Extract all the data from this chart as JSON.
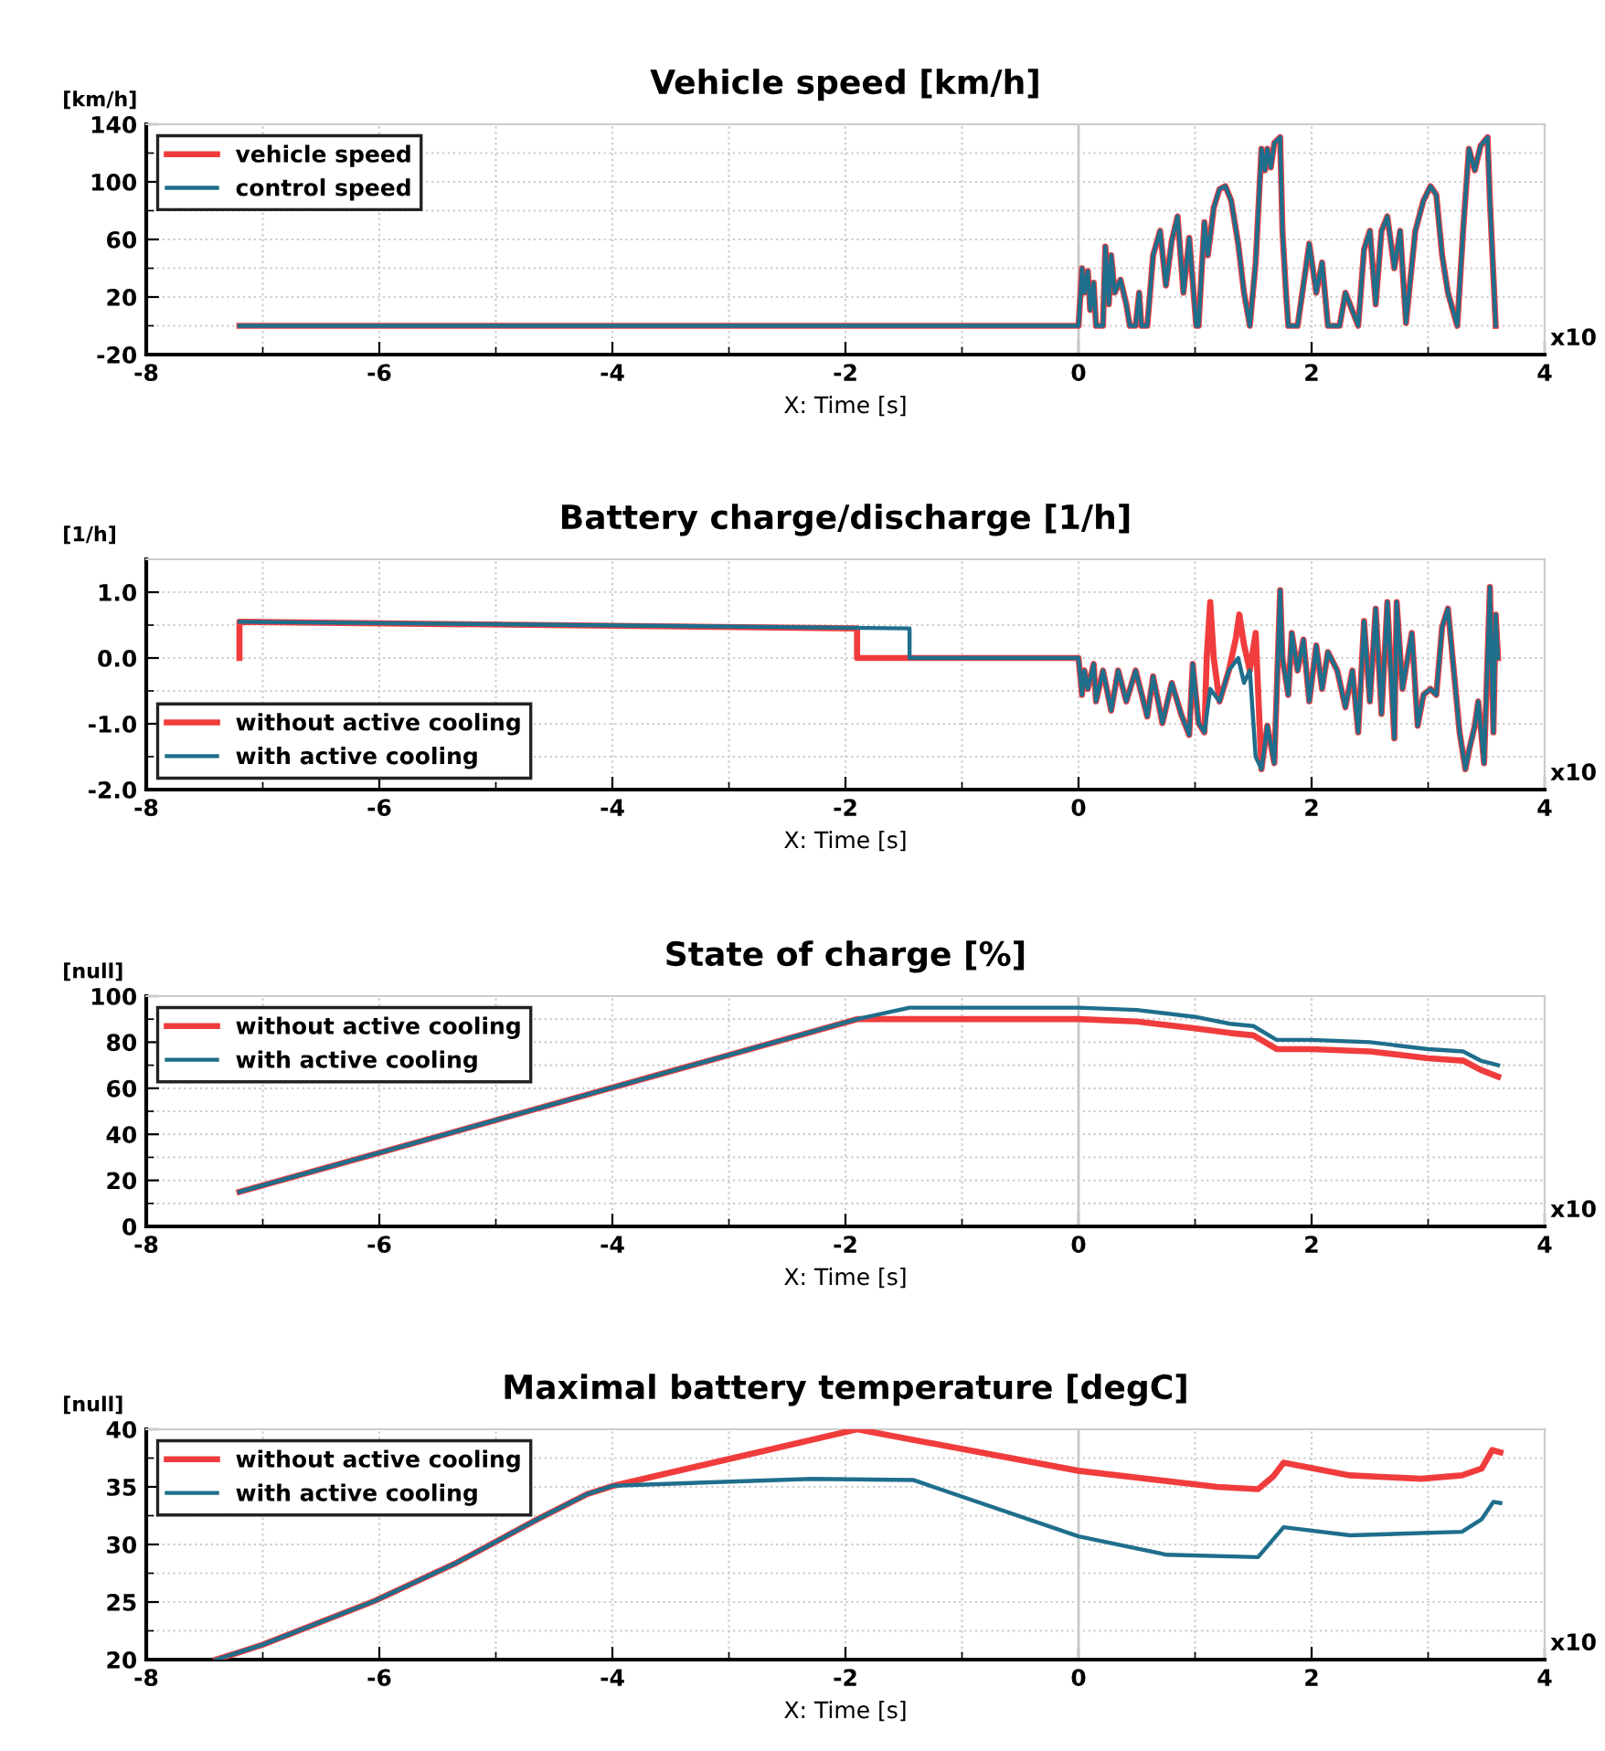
{
  "chart_data": [
    {
      "type": "line",
      "title": "Vehicle speed [km/h]",
      "ylabel": "[km/h]",
      "xlabel": "X: Time [s]",
      "annotations": [
        "x10"
      ],
      "legend": "top left",
      "grid": true,
      "xlim": [
        -8,
        4
      ],
      "xticks": [
        -8,
        -6,
        -4,
        -2,
        0,
        2,
        4
      ],
      "ylim": [
        -20,
        140
      ],
      "yticks": [
        -20,
        20,
        60,
        100,
        140
      ],
      "ref_lines": [
        {
          "axis": "x",
          "value": 0,
          "color": "#c8c8c8"
        }
      ],
      "series": [
        {
          "name": "vehicle speed",
          "color": "#f03c3c",
          "x": [
            -7.2,
            0.0,
            0.03,
            0.05,
            0.08,
            0.1,
            0.13,
            0.15,
            0.21,
            0.23,
            0.26,
            0.28,
            0.31,
            0.36,
            0.41,
            0.44,
            0.49,
            0.52,
            0.54,
            0.59,
            0.64,
            0.7,
            0.75,
            0.8,
            0.85,
            0.9,
            0.95,
            1.01,
            1.03,
            1.08,
            1.11,
            1.16,
            1.21,
            1.26,
            1.31,
            1.37,
            1.42,
            1.47,
            1.52,
            1.57,
            1.6,
            1.62,
            1.65,
            1.68,
            1.73,
            1.75,
            1.78,
            1.8,
            1.88,
            1.98,
            2.04,
            2.09,
            2.14,
            2.24,
            2.29,
            2.4,
            2.45,
            2.5,
            2.55,
            2.6,
            2.65,
            2.71,
            2.76,
            2.81,
            2.89,
            2.96,
            3.02,
            3.07,
            3.12,
            3.17,
            3.25,
            3.3,
            3.35,
            3.4,
            3.45,
            3.51,
            3.53,
            3.58
          ],
          "values": [
            0,
            0,
            40,
            23,
            38,
            11,
            30,
            0,
            0,
            55,
            15,
            49,
            23,
            32,
            15,
            0,
            0,
            23,
            0,
            0,
            49,
            66,
            28,
            59,
            76,
            23,
            61,
            0,
            0,
            72,
            49,
            82,
            95,
            97,
            87,
            57,
            23,
            0,
            44,
            123,
            108,
            123,
            110,
            127,
            131,
            66,
            23,
            0,
            0,
            57,
            23,
            44,
            0,
            0,
            23,
            0,
            53,
            66,
            15,
            66,
            76,
            40,
            66,
            2,
            66,
            87,
            97,
            91,
            49,
            23,
            0,
            66,
            123,
            108,
            125,
            131,
            87,
            0
          ]
        },
        {
          "name": "control speed",
          "color": "#1f6e8c",
          "x": [
            -7.2,
            0.0,
            0.03,
            0.05,
            0.08,
            0.1,
            0.13,
            0.15,
            0.21,
            0.23,
            0.26,
            0.28,
            0.31,
            0.36,
            0.41,
            0.44,
            0.49,
            0.52,
            0.54,
            0.59,
            0.64,
            0.7,
            0.75,
            0.8,
            0.85,
            0.9,
            0.95,
            1.01,
            1.03,
            1.08,
            1.11,
            1.16,
            1.21,
            1.26,
            1.31,
            1.37,
            1.42,
            1.47,
            1.52,
            1.57,
            1.6,
            1.62,
            1.65,
            1.68,
            1.73,
            1.75,
            1.78,
            1.8,
            1.88,
            1.98,
            2.04,
            2.09,
            2.14,
            2.24,
            2.29,
            2.4,
            2.45,
            2.5,
            2.55,
            2.6,
            2.65,
            2.71,
            2.76,
            2.81,
            2.89,
            2.96,
            3.02,
            3.07,
            3.12,
            3.17,
            3.25,
            3.3,
            3.35,
            3.4,
            3.45,
            3.51,
            3.53,
            3.58
          ],
          "values": [
            0,
            0,
            40,
            23,
            38,
            11,
            30,
            0,
            0,
            55,
            15,
            49,
            23,
            32,
            15,
            0,
            0,
            23,
            0,
            0,
            49,
            66,
            28,
            59,
            76,
            23,
            61,
            0,
            0,
            72,
            49,
            82,
            95,
            97,
            87,
            57,
            23,
            0,
            44,
            123,
            108,
            123,
            110,
            127,
            131,
            66,
            23,
            0,
            0,
            57,
            23,
            44,
            0,
            0,
            23,
            0,
            53,
            66,
            15,
            66,
            76,
            40,
            66,
            2,
            66,
            87,
            97,
            91,
            49,
            23,
            0,
            66,
            123,
            108,
            125,
            131,
            87,
            0
          ]
        }
      ]
    },
    {
      "type": "line",
      "title": "Battery charge/discharge [1/h]",
      "ylabel": "[1/h]",
      "xlabel": "X: Time [s]",
      "annotations": [
        "x10"
      ],
      "legend": "bottom left",
      "grid": true,
      "xlim": [
        -8,
        4
      ],
      "xticks": [
        -8,
        -6,
        -4,
        -2,
        0,
        2,
        4
      ],
      "ylim": [
        -2.0,
        1.5
      ],
      "yticks": [
        {
          "value": -2,
          "label": "-2.0"
        },
        {
          "value": -1,
          "label": "-1.0"
        },
        {
          "value": 0,
          "label": "0.0"
        },
        {
          "value": 1,
          "label": "1.0"
        }
      ],
      "series": [
        {
          "name": "without active cooling",
          "color": "#f03c3c",
          "x": [
            -7.2,
            -7.2,
            -1.9,
            -1.9,
            0.0,
            0.03,
            0.05,
            0.08,
            0.13,
            0.15,
            0.21,
            0.28,
            0.34,
            0.41,
            0.49,
            0.59,
            0.64,
            0.72,
            0.8,
            0.88,
            0.95,
            0.98,
            1.03,
            1.08,
            1.1,
            1.13,
            1.16,
            1.21,
            1.29,
            1.35,
            1.38,
            1.42,
            1.47,
            1.52,
            1.57,
            1.62,
            1.68,
            1.73,
            1.75,
            1.8,
            1.83,
            1.88,
            1.93,
            1.98,
            2.04,
            2.09,
            2.14,
            2.22,
            2.29,
            2.35,
            2.4,
            2.45,
            2.5,
            2.55,
            2.6,
            2.65,
            2.71,
            2.73,
            2.78,
            2.86,
            2.91,
            2.96,
            3.02,
            3.07,
            3.12,
            3.17,
            3.22,
            3.27,
            3.32,
            3.35,
            3.4,
            3.43,
            3.48,
            3.53,
            3.56,
            3.58,
            3.6
          ],
          "values": [
            0,
            0.55,
            0.45,
            0,
            0,
            -0.56,
            -0.19,
            -0.47,
            -0.09,
            -0.66,
            -0.19,
            -0.8,
            -0.19,
            -0.66,
            -0.19,
            -0.89,
            -0.28,
            -0.99,
            -0.38,
            -0.85,
            -1.17,
            -0.09,
            -0.99,
            -1.13,
            0,
            0.85,
            0,
            -0.66,
            -0.19,
            0.3,
            0.66,
            0.2,
            -0.19,
            0.38,
            -1.69,
            -1.03,
            -1.6,
            1.03,
            0,
            -0.56,
            0.38,
            -0.19,
            0.28,
            -0.66,
            0.19,
            -0.47,
            0.09,
            -0.19,
            -0.75,
            -0.19,
            -1.13,
            0.56,
            -0.66,
            0.75,
            -0.85,
            0.85,
            -1.22,
            0.85,
            -0.47,
            0.38,
            -1.03,
            -0.56,
            -0.47,
            -0.56,
            0.47,
            0.75,
            -0.19,
            -1.13,
            -1.69,
            -1.41,
            -1.03,
            -0.66,
            -1.6,
            1.08,
            -1.13,
            0.66,
            0
          ]
        },
        {
          "name": "with active cooling",
          "color": "#1f6e8c",
          "x": [
            -7.2,
            -1.45,
            -1.45,
            0.0,
            0.03,
            0.05,
            0.08,
            0.13,
            0.15,
            0.21,
            0.28,
            0.34,
            0.41,
            0.49,
            0.59,
            0.64,
            0.72,
            0.8,
            0.88,
            0.95,
            0.98,
            1.03,
            1.08,
            1.13,
            1.21,
            1.29,
            1.37,
            1.42,
            1.47,
            1.52,
            1.57,
            1.62,
            1.68,
            1.73,
            1.75,
            1.8,
            1.83,
            1.88,
            1.93,
            1.98,
            2.04,
            2.09,
            2.14,
            2.22,
            2.29,
            2.35,
            2.4,
            2.45,
            2.5,
            2.55,
            2.6,
            2.65,
            2.71,
            2.73,
            2.78,
            2.86,
            2.91,
            2.96,
            3.02,
            3.07,
            3.12,
            3.17,
            3.22,
            3.27,
            3.32,
            3.35,
            3.4,
            3.43,
            3.48,
            3.53,
            3.56,
            3.58,
            3.6
          ],
          "values": [
            0.55,
            0.45,
            0,
            0,
            -0.56,
            -0.19,
            -0.47,
            -0.09,
            -0.66,
            -0.19,
            -0.8,
            -0.19,
            -0.66,
            -0.19,
            -0.89,
            -0.28,
            -0.99,
            -0.38,
            -0.85,
            -1.17,
            -0.09,
            -0.99,
            -1.13,
            -0.47,
            -0.66,
            -0.19,
            0,
            -0.38,
            -0.19,
            -1.5,
            -1.69,
            -1.03,
            -1.6,
            1.03,
            0,
            -0.56,
            0.38,
            -0.19,
            0.28,
            -0.66,
            0.19,
            -0.47,
            0.09,
            -0.19,
            -0.75,
            -0.19,
            -1.13,
            0.56,
            -0.66,
            0.75,
            -0.85,
            0.85,
            -1.22,
            0.85,
            -0.47,
            0.38,
            -1.03,
            -0.56,
            -0.47,
            -0.56,
            0.47,
            0.75,
            -0.19,
            -1.13,
            -1.69,
            -1.41,
            -1.03,
            -0.66,
            -1.6,
            1.08,
            -1.13,
            0.66,
            0
          ]
        }
      ]
    },
    {
      "type": "line",
      "title": "State of charge [%]",
      "ylabel": "[null]",
      "xlabel": "X: Time [s]",
      "annotations": [
        "x10"
      ],
      "legend": "top left",
      "grid": true,
      "xlim": [
        -8,
        4
      ],
      "xticks": [
        -8,
        -6,
        -4,
        -2,
        0,
        2,
        4
      ],
      "ylim": [
        0,
        100
      ],
      "yticks": [
        0,
        20,
        40,
        60,
        80,
        100
      ],
      "ref_lines": [
        {
          "axis": "x",
          "value": 0,
          "color": "#c8c8c8"
        }
      ],
      "series": [
        {
          "name": "without active cooling",
          "color": "#f03c3c",
          "x": [
            -7.2,
            -1.9,
            0,
            0.5,
            1.0,
            1.3,
            1.5,
            1.7,
            2.0,
            2.5,
            3.0,
            3.3,
            3.45,
            3.6
          ],
          "values": [
            15,
            90,
            90,
            89,
            86,
            84,
            83,
            77,
            77,
            76,
            73,
            72,
            68,
            65
          ]
        },
        {
          "name": "with active cooling",
          "color": "#1f6e8c",
          "x": [
            -7.2,
            -1.9,
            -1.45,
            0,
            0.5,
            1.0,
            1.3,
            1.5,
            1.7,
            2.0,
            2.5,
            3.0,
            3.3,
            3.45,
            3.6
          ],
          "values": [
            15,
            90,
            95,
            95,
            94,
            91,
            88,
            87,
            81,
            81,
            80,
            77,
            76,
            72,
            70
          ]
        }
      ]
    },
    {
      "type": "line",
      "title": "Maximal battery temperature [degC]",
      "ylabel": "[null]",
      "xlabel": "X: Time [s]",
      "annotations": [
        "x10"
      ],
      "legend": "top left",
      "grid": true,
      "xlim": [
        -8,
        4
      ],
      "xticks": [
        -8,
        -6,
        -4,
        -2,
        0,
        2,
        4
      ],
      "ylim": [
        20,
        40
      ],
      "yticks": [
        20,
        25,
        30,
        35,
        40
      ],
      "ref_lines": [
        {
          "axis": "x",
          "value": 0,
          "color": "#c8c8c8"
        }
      ],
      "series": [
        {
          "name": "without active cooling",
          "color": "#f03c3c",
          "x": [
            -7.4,
            -7.0,
            -6.04,
            -5.34,
            -4.64,
            -4.21,
            -3.99,
            -1.9,
            0,
            1.19,
            1.54,
            1.67,
            1.76,
            2.33,
            2.94,
            3.29,
            3.46,
            3.55,
            3.62
          ],
          "values": [
            20,
            21.3,
            25.1,
            28.4,
            32.2,
            34.4,
            35.1,
            40,
            36.4,
            35.0,
            34.8,
            35.9,
            37.1,
            36.0,
            35.7,
            36.0,
            36.6,
            38.2,
            38.0
          ]
        },
        {
          "name": "with active cooling",
          "color": "#1f6e8c",
          "x": [
            -7.4,
            -7.0,
            -6.04,
            -5.34,
            -4.64,
            -4.21,
            -3.99,
            -2.29,
            -1.42,
            0,
            0.76,
            1.54,
            1.76,
            2.33,
            3.29,
            3.46,
            3.56,
            3.62
          ],
          "values": [
            20,
            21.3,
            25.1,
            28.4,
            32.2,
            34.4,
            35.1,
            35.7,
            35.6,
            30.7,
            29.1,
            28.9,
            31.5,
            30.8,
            31.1,
            32.2,
            33.7,
            33.6
          ]
        }
      ]
    }
  ]
}
